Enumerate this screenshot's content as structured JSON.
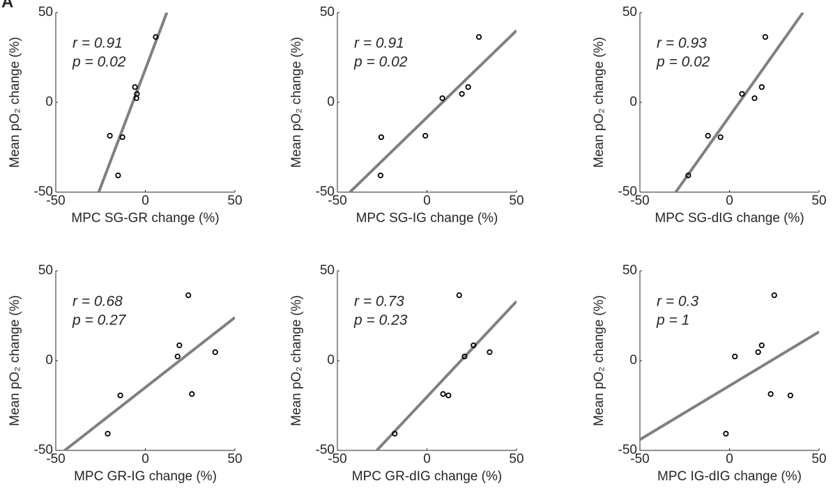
{
  "panel_label": "A",
  "chart_data": [
    {
      "type": "scatter",
      "x_label": "MPC SG-GR change (%)",
      "y_label": "Mean pO₂ change (%)",
      "annotations": [
        "r = 0.91",
        "p = 0.02"
      ],
      "x": [
        5.8,
        -5.8,
        -4.7,
        -5,
        -19.8,
        -12.8,
        -15.2
      ],
      "values": [
        36.4,
        8.5,
        4.7,
        2.3,
        -18.6,
        -19.4,
        -40.7
      ],
      "fit_x": [
        -26,
        12
      ],
      "fit_y": [
        -50,
        50
      ],
      "color": "#000000",
      "fit_color": "#808080",
      "xlim": [
        -50,
        50
      ],
      "ylim": [
        -50,
        50
      ],
      "xticks": [
        -50,
        0,
        50
      ],
      "yticks": [
        -50,
        0,
        50
      ]
    },
    {
      "type": "scatter",
      "x_label": "MPC SG-IG change (%)",
      "y_label": "Mean pO₂ change (%)",
      "annotations": [
        "r = 0.91",
        "p = 0.02"
      ],
      "x": [
        29,
        23,
        19.5,
        8.6,
        -0.9,
        -25.5,
        -25.9
      ],
      "values": [
        36.4,
        8.5,
        4.7,
        2.3,
        -18.6,
        -19.4,
        -40.7
      ],
      "fit_x": [
        -43,
        50
      ],
      "fit_y": [
        -50,
        40
      ],
      "color": "#000000",
      "fit_color": "#808080",
      "xlim": [
        -50,
        50
      ],
      "ylim": [
        -50,
        50
      ],
      "xticks": [
        -50,
        0,
        50
      ],
      "yticks": [
        -50,
        0,
        50
      ]
    },
    {
      "type": "scatter",
      "x_label": "MPC SG-dIG change (%)",
      "y_label": "Mean pO₂ change (%)",
      "annotations": [
        "r = 0.93",
        "p = 0.02"
      ],
      "x": [
        20,
        18,
        7,
        14,
        -12,
        -5,
        -23
      ],
      "values": [
        36.4,
        8.5,
        4.7,
        2.3,
        -18.6,
        -19.4,
        -40.7
      ],
      "fit_x": [
        -30,
        41
      ],
      "fit_y": [
        -50,
        50
      ],
      "color": "#000000",
      "fit_color": "#808080",
      "xlim": [
        -50,
        50
      ],
      "ylim": [
        -50,
        50
      ],
      "xticks": [
        -50,
        0,
        50
      ],
      "yticks": [
        -50,
        0,
        50
      ]
    },
    {
      "type": "scatter",
      "x_label": "MPC GR-IG change (%)",
      "y_label": "Mean pO₂ change (%)",
      "annotations": [
        "r = 0.68",
        "p = 0.27"
      ],
      "x": [
        24,
        19,
        39,
        18,
        26,
        -14,
        -21
      ],
      "values": [
        36.4,
        8.5,
        4.7,
        2.3,
        -18.6,
        -19.4,
        -40.7
      ],
      "fit_x": [
        -45,
        50
      ],
      "fit_y": [
        -50,
        24
      ],
      "color": "#000000",
      "fit_color": "#808080",
      "xlim": [
        -50,
        50
      ],
      "ylim": [
        -50,
        50
      ],
      "xticks": [
        -50,
        0,
        50
      ],
      "yticks": [
        -50,
        0,
        50
      ]
    },
    {
      "type": "scatter",
      "x_label": "MPC GR-dIG change (%)",
      "y_label": "Mean pO₂ change (%)",
      "annotations": [
        "r = 0.73",
        "p = 0.23"
      ],
      "x": [
        18,
        26,
        35,
        21,
        9,
        12,
        -18
      ],
      "values": [
        36.4,
        8.5,
        4.7,
        2.3,
        -18.6,
        -19.4,
        -40.7
      ],
      "fit_x": [
        -28,
        50
      ],
      "fit_y": [
        -50,
        33
      ],
      "color": "#000000",
      "fit_color": "#808080",
      "xlim": [
        -50,
        50
      ],
      "ylim": [
        -50,
        50
      ],
      "xticks": [
        -50,
        0,
        50
      ],
      "yticks": [
        -50,
        0,
        50
      ]
    },
    {
      "type": "scatter",
      "x_label": "MPC IG-dIG change (%)",
      "y_label": "Mean pO₂ change (%)",
      "annotations": [
        "r = 0.3",
        "p = 1"
      ],
      "x": [
        25,
        18,
        16,
        3,
        23,
        34,
        -2
      ],
      "values": [
        36.4,
        8.5,
        4.7,
        2.3,
        -18.6,
        -19.4,
        -40.7
      ],
      "fit_x": [
        -50,
        50
      ],
      "fit_y": [
        -44,
        16
      ],
      "color": "#000000",
      "fit_color": "#808080",
      "xlim": [
        -50,
        50
      ],
      "ylim": [
        -50,
        50
      ],
      "xticks": [
        -50,
        0,
        50
      ],
      "yticks": [
        -50,
        0,
        50
      ]
    }
  ]
}
